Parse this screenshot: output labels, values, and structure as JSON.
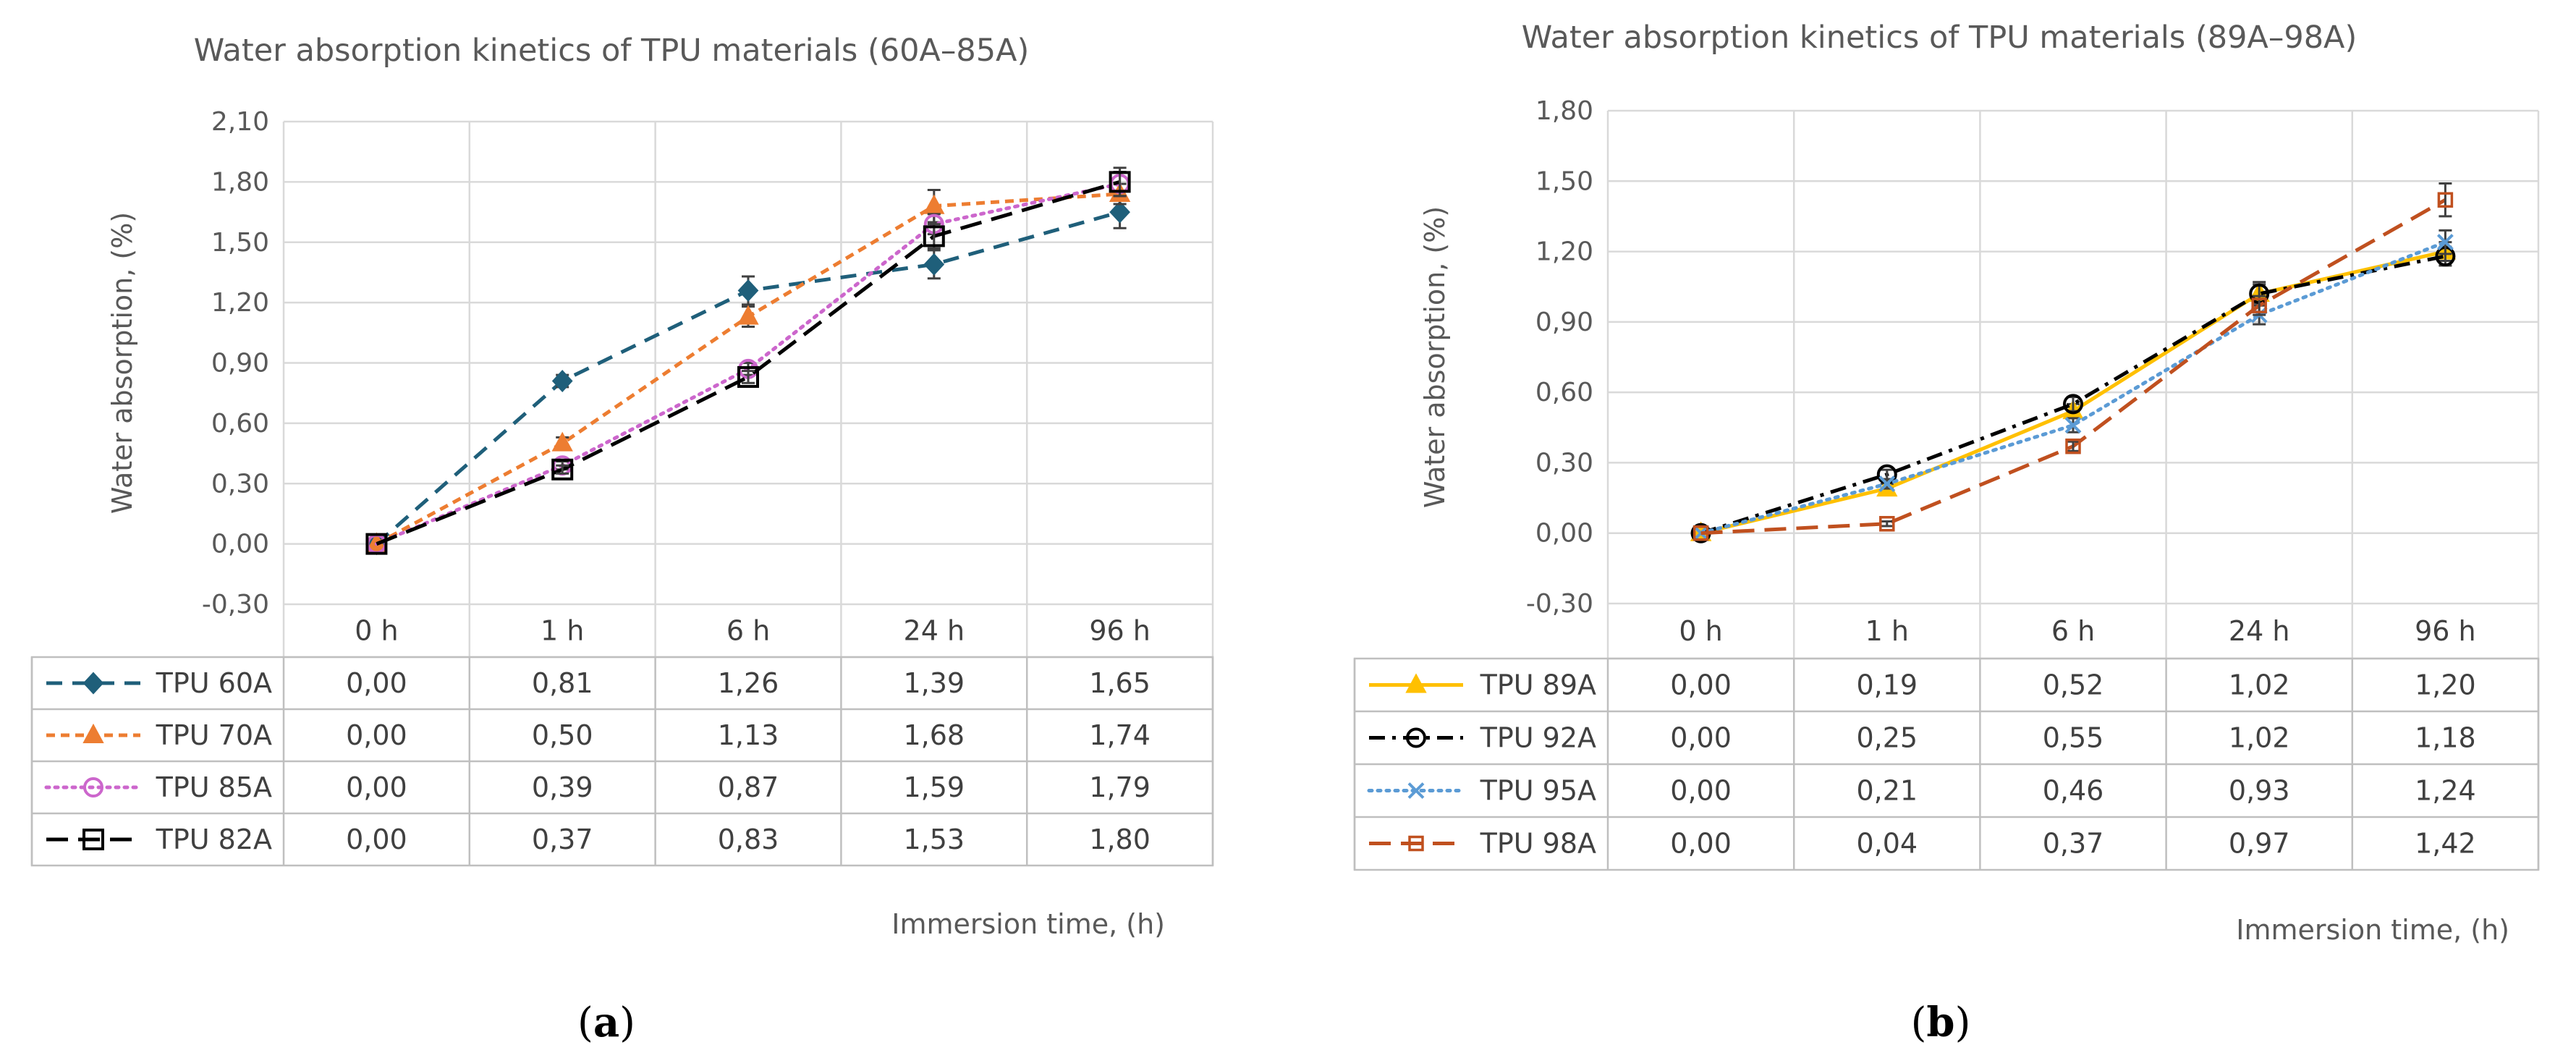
{
  "figure": {
    "panel_labels": [
      {
        "text": "(a)",
        "letter": "a"
      },
      {
        "text": "(b)",
        "letter": "b"
      }
    ]
  },
  "chart_data": [
    {
      "type": "line",
      "title": "Water absorption kinetics of TPU materials (60A–85A)",
      "xlabel": "Immersion time, (h)",
      "ylabel": "Water absorption, (%)",
      "categories": [
        "0 h",
        "1 h",
        "6 h",
        "24 h",
        "96 h"
      ],
      "ylim": [
        -0.3,
        2.1
      ],
      "yticks": [
        "-0,30",
        "0,00",
        "0,30",
        "0,60",
        "0,90",
        "1,20",
        "1,50",
        "1,80",
        "2,10"
      ],
      "grid": true,
      "legend": "data-table-below",
      "series": [
        {
          "name": "TPU 60A",
          "color": "#1f5f7a",
          "dash": "dash",
          "marker": "diamond",
          "values": [
            0.0,
            0.81,
            1.26,
            1.39,
            1.65
          ],
          "labels": [
            "0,00",
            "0,81",
            "1,26",
            "1,39",
            "1,65"
          ],
          "errors": [
            0,
            0.03,
            0.07,
            0.07,
            0.08
          ]
        },
        {
          "name": "TPU 70A",
          "color": "#ed7d31",
          "dash": "shortdash",
          "marker": "triangle",
          "values": [
            0.0,
            0.5,
            1.13,
            1.68,
            1.74
          ],
          "labels": [
            "0,00",
            "0,50",
            "1,13",
            "1,68",
            "1,74"
          ],
          "errors": [
            0,
            0.03,
            0.05,
            0.08,
            0.05
          ]
        },
        {
          "name": "TPU 85A",
          "color": "#cc66cc",
          "dash": "dot",
          "marker": "circle",
          "values": [
            0.0,
            0.39,
            0.87,
            1.59,
            1.79
          ],
          "labels": [
            "0,00",
            "0,39",
            "0,87",
            "1,59",
            "1,79"
          ],
          "errors": [
            0,
            0.02,
            0.03,
            0.05,
            0.06
          ]
        },
        {
          "name": "TPU 82A",
          "color": "#000000",
          "dash": "longdash",
          "marker": "square",
          "values": [
            0.0,
            0.37,
            0.83,
            1.53,
            1.8
          ],
          "labels": [
            "0,00",
            "0,37",
            "0,83",
            "1,53",
            "1,80"
          ],
          "errors": [
            0,
            0.02,
            0.03,
            0.06,
            0.07
          ]
        }
      ]
    },
    {
      "type": "line",
      "title": "Water absorption kinetics of TPU materials (89A–98A)",
      "xlabel": "Immersion time, (h)",
      "ylabel": "Water absorption, (%)",
      "categories": [
        "0 h",
        "1 h",
        "6 h",
        "24 h",
        "96 h"
      ],
      "ylim": [
        -0.3,
        1.8
      ],
      "yticks": [
        "-0,30",
        "0,00",
        "0,30",
        "0,60",
        "0,90",
        "1,20",
        "1,50",
        "1,80"
      ],
      "grid": true,
      "legend": "data-table-below",
      "series": [
        {
          "name": "TPU 89A",
          "color": "#ffc000",
          "dash": "solid",
          "marker": "triangle",
          "values": [
            0.0,
            0.19,
            0.52,
            1.02,
            1.2
          ],
          "labels": [
            "0,00",
            "0,19",
            "0,52",
            "1,02",
            "1,20"
          ],
          "errors": [
            0,
            0.02,
            0.03,
            0.04,
            0.04
          ]
        },
        {
          "name": "TPU 92A",
          "color": "#000000",
          "dash": "dashdot",
          "marker": "circle",
          "values": [
            0.0,
            0.25,
            0.55,
            1.02,
            1.18
          ],
          "labels": [
            "0,00",
            "0,25",
            "0,55",
            "1,02",
            "1,18"
          ],
          "errors": [
            0,
            0.02,
            0.03,
            0.05,
            0.04
          ]
        },
        {
          "name": "TPU 95A",
          "color": "#5b9bd5",
          "dash": "dot",
          "marker": "x",
          "values": [
            0.0,
            0.21,
            0.46,
            0.93,
            1.24
          ],
          "labels": [
            "0,00",
            "0,21",
            "0,46",
            "0,93",
            "1,24"
          ],
          "errors": [
            0,
            0.02,
            0.03,
            0.04,
            0.05
          ]
        },
        {
          "name": "TPU 98A",
          "color": "#c0501f",
          "dash": "longdash",
          "marker": "smallsquare",
          "values": [
            0.0,
            0.04,
            0.37,
            0.97,
            1.42
          ],
          "labels": [
            "0,00",
            "0,04",
            "0,37",
            "0,97",
            "1,42"
          ],
          "errors": [
            0,
            0.01,
            0.02,
            0.04,
            0.07
          ]
        }
      ]
    }
  ]
}
